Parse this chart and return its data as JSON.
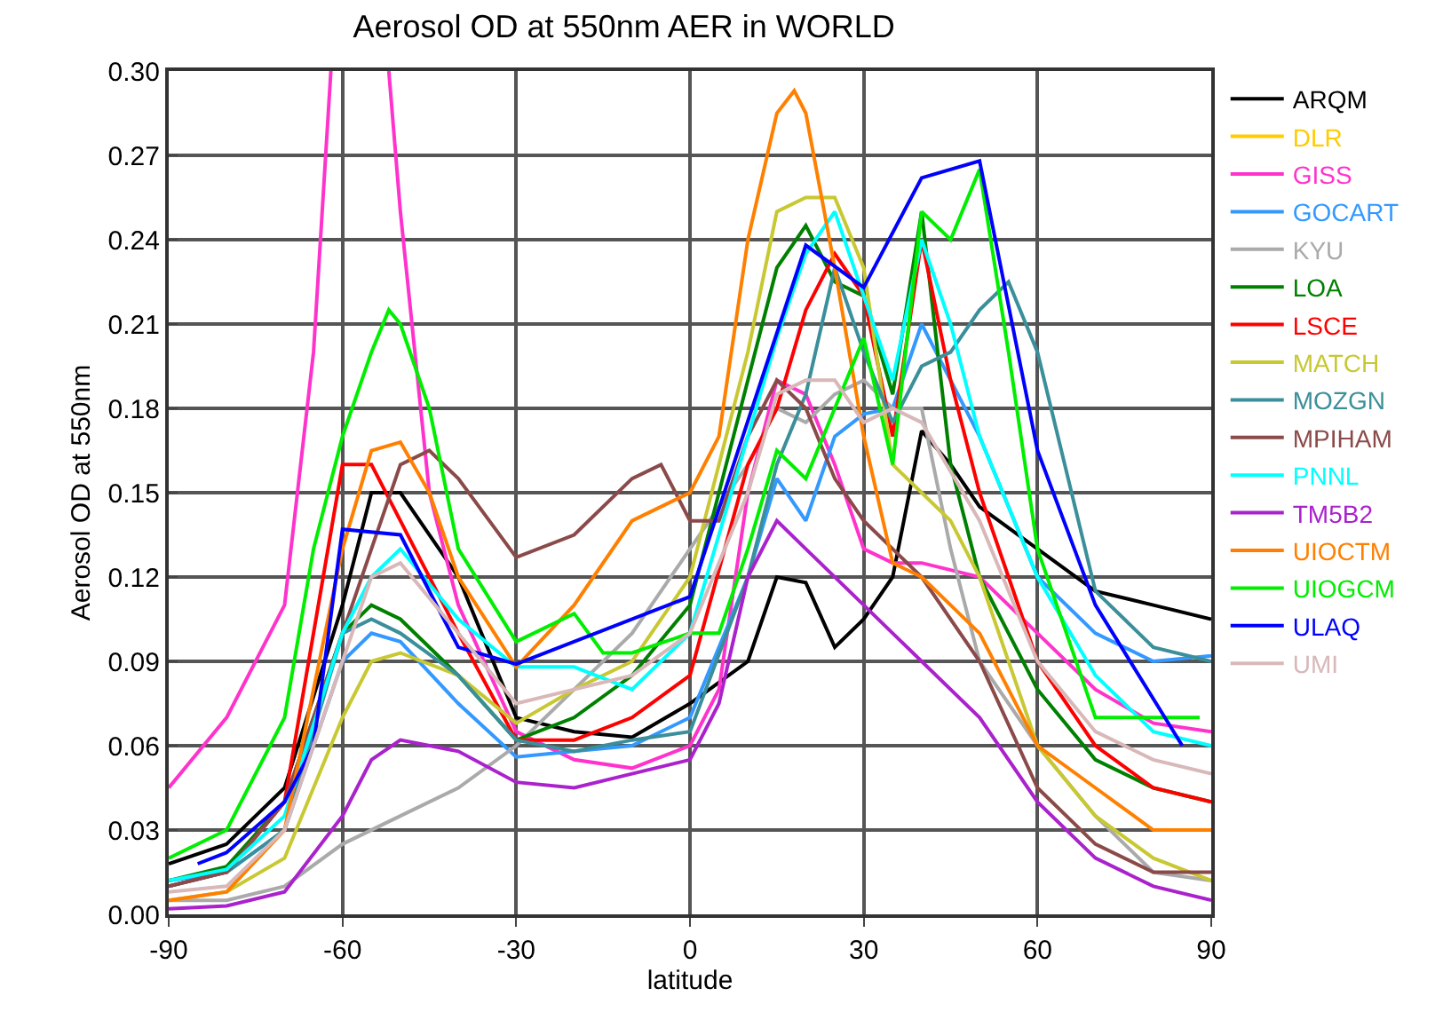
{
  "chart_data": {
    "type": "line",
    "title": "Aerosol OD at 550nm AER in WORLD",
    "xlabel": "latitude",
    "ylabel": "Aerosol OD at 550nm",
    "xlim": [
      -90,
      90
    ],
    "xticks": [
      -90,
      -60,
      -30,
      0,
      30,
      60,
      90
    ],
    "ylim": [
      0,
      0.3
    ],
    "yticks": [
      {
        "value": 0,
        "label": "0.00"
      },
      {
        "value": 0.03,
        "label": "0.03"
      },
      {
        "value": 0.06,
        "label": "0.06"
      },
      {
        "value": 0.09,
        "label": "0.09"
      },
      {
        "value": 0.12,
        "label": "0.12"
      },
      {
        "value": 0.15,
        "label": "0.15"
      },
      {
        "value": 0.18,
        "label": "0.18"
      },
      {
        "value": 0.21,
        "label": "0.21"
      },
      {
        "value": 0.24,
        "label": "0.24"
      },
      {
        "value": 0.27,
        "label": "0.27"
      },
      {
        "value": 0.3,
        "label": "0.30"
      }
    ],
    "grid": true,
    "legend": "right",
    "marker": "none",
    "line_style": "solid",
    "series": [
      {
        "name": "ARQM",
        "color": "#000000",
        "x": [
          -90,
          -80,
          -70,
          -60,
          -55,
          -50,
          -40,
          -30,
          -20,
          -10,
          0,
          10,
          15,
          20,
          25,
          30,
          35,
          40,
          45,
          50,
          60,
          70,
          80,
          90
        ],
        "values": [
          0.018,
          0.025,
          0.045,
          0.11,
          0.15,
          0.15,
          0.12,
          0.07,
          0.065,
          0.063,
          0.075,
          0.09,
          0.12,
          0.118,
          0.095,
          0.105,
          0.12,
          0.172,
          0.16,
          0.145,
          0.13,
          0.115,
          0.11,
          0.105
        ]
      },
      {
        "name": "DLR",
        "color": "#ffcc00"
      },
      {
        "name": "GISS",
        "color": "#ff33cc",
        "x": [
          -90,
          -80,
          -70,
          -65,
          -62,
          -57,
          -52,
          -50,
          -45,
          -40,
          -30,
          -20,
          -10,
          0,
          5,
          10,
          15,
          20,
          25,
          30,
          35,
          40,
          50,
          60,
          70,
          80,
          90
        ],
        "values": [
          0.045,
          0.07,
          0.11,
          0.2,
          0.3,
          null,
          0.3,
          0.25,
          0.15,
          0.11,
          0.065,
          0.055,
          0.052,
          0.06,
          0.08,
          0.15,
          0.19,
          0.185,
          0.16,
          0.13,
          0.125,
          0.125,
          0.12,
          0.1,
          0.08,
          0.068,
          0.065
        ]
      },
      {
        "name": "GOCART",
        "color": "#3399ff",
        "x": [
          -90,
          -80,
          -70,
          -60,
          -55,
          -50,
          -40,
          -30,
          -20,
          -10,
          0,
          10,
          15,
          20,
          25,
          30,
          35,
          40,
          45,
          50,
          60,
          70,
          80,
          90
        ],
        "values": [
          0.012,
          0.015,
          0.03,
          0.09,
          0.1,
          0.097,
          0.075,
          0.056,
          0.058,
          0.06,
          0.07,
          0.12,
          0.155,
          0.14,
          0.17,
          0.178,
          0.18,
          0.21,
          0.19,
          0.17,
          0.12,
          0.1,
          0.09,
          0.092
        ]
      },
      {
        "name": "KYU",
        "color": "#aaaaaa",
        "x": [
          -90,
          -80,
          -70,
          -60,
          -50,
          -40,
          -30,
          -20,
          -10,
          0,
          10,
          15,
          20,
          25,
          30,
          35,
          40,
          45,
          50,
          60,
          70,
          80,
          90
        ],
        "values": [
          0.005,
          0.005,
          0.01,
          0.025,
          0.035,
          0.045,
          0.06,
          0.08,
          0.1,
          0.13,
          0.16,
          0.18,
          0.175,
          0.185,
          0.19,
          0.18,
          0.18,
          0.13,
          0.09,
          0.06,
          0.035,
          0.015,
          0.012
        ]
      },
      {
        "name": "LOA",
        "color": "#008000",
        "x": [
          -90,
          -80,
          -70,
          -60,
          -55,
          -50,
          -40,
          -30,
          -20,
          -10,
          0,
          10,
          15,
          20,
          25,
          30,
          35,
          40,
          45,
          50,
          60,
          70,
          80,
          90
        ],
        "values": [
          0.012,
          0.017,
          0.04,
          0.1,
          0.11,
          0.105,
          0.085,
          0.062,
          0.07,
          0.085,
          0.11,
          0.19,
          0.23,
          0.245,
          0.225,
          0.22,
          0.185,
          0.25,
          0.16,
          0.12,
          0.08,
          0.055,
          0.045,
          0.04
        ]
      },
      {
        "name": "LSCE",
        "color": "#ff0000",
        "x": [
          -90,
          -80,
          -70,
          -60,
          -55,
          -50,
          -40,
          -30,
          -20,
          -10,
          0,
          10,
          15,
          20,
          25,
          30,
          35,
          40,
          45,
          50,
          60,
          70,
          80,
          90
        ],
        "values": [
          0.01,
          0.015,
          0.04,
          0.16,
          0.16,
          0.14,
          0.1,
          0.062,
          0.062,
          0.07,
          0.085,
          0.16,
          0.18,
          0.215,
          0.235,
          0.22,
          0.17,
          0.24,
          0.19,
          0.15,
          0.09,
          0.06,
          0.045,
          0.04
        ]
      },
      {
        "name": "MATCH",
        "color": "#c8c832",
        "x": [
          -90,
          -80,
          -70,
          -60,
          -55,
          -50,
          -40,
          -30,
          -20,
          -10,
          0,
          10,
          15,
          20,
          25,
          30,
          35,
          40,
          45,
          50,
          60,
          70,
          80,
          90
        ],
        "values": [
          0.005,
          0.008,
          0.02,
          0.07,
          0.09,
          0.093,
          0.085,
          0.068,
          0.08,
          0.09,
          0.12,
          0.2,
          0.25,
          0.255,
          0.255,
          0.23,
          0.16,
          0.15,
          0.14,
          0.12,
          0.06,
          0.035,
          0.02,
          0.012
        ]
      },
      {
        "name": "MOZGN",
        "color": "#3a8f9a",
        "x": [
          -90,
          -80,
          -70,
          -60,
          -55,
          -50,
          -40,
          -30,
          -20,
          -10,
          0,
          10,
          15,
          20,
          25,
          30,
          35,
          40,
          45,
          50,
          55,
          60,
          70,
          80,
          90
        ],
        "values": [
          0.01,
          0.015,
          0.03,
          0.1,
          0.105,
          0.1,
          0.085,
          0.062,
          0.058,
          0.062,
          0.065,
          0.12,
          0.16,
          0.185,
          0.23,
          0.2,
          0.175,
          0.195,
          0.2,
          0.215,
          0.225,
          0.2,
          0.115,
          0.095,
          0.09
        ]
      },
      {
        "name": "MPIHAM",
        "color": "#8b4a4a",
        "x": [
          -90,
          -80,
          -70,
          -60,
          -55,
          -50,
          -45,
          -40,
          -30,
          -20,
          -10,
          -5,
          0,
          5,
          10,
          15,
          20,
          25,
          30,
          35,
          40,
          50,
          60,
          70,
          80,
          90
        ],
        "values": [
          0.01,
          0.015,
          0.04,
          0.1,
          0.13,
          0.16,
          0.165,
          0.155,
          0.127,
          0.135,
          0.155,
          0.16,
          0.14,
          0.14,
          0.17,
          0.19,
          0.18,
          0.155,
          0.14,
          0.13,
          0.12,
          0.09,
          0.045,
          0.025,
          0.015,
          0.015
        ]
      },
      {
        "name": "PNNL",
        "color": "#00ffff",
        "x": [
          -90,
          -80,
          -70,
          -60,
          -55,
          -50,
          -40,
          -30,
          -20,
          -10,
          0,
          10,
          15,
          20,
          25,
          30,
          35,
          40,
          45,
          50,
          60,
          70,
          80,
          90
        ],
        "values": [
          0.012,
          0.016,
          0.035,
          0.1,
          0.12,
          0.13,
          0.105,
          0.088,
          0.088,
          0.08,
          0.1,
          0.17,
          0.205,
          0.235,
          0.25,
          0.22,
          0.19,
          0.24,
          0.21,
          0.17,
          0.12,
          0.085,
          0.065,
          0.06
        ]
      },
      {
        "name": "TM5B2",
        "color": "#aa22cc",
        "x": [
          -90,
          -80,
          -70,
          -60,
          -55,
          -50,
          -40,
          -30,
          -20,
          -10,
          0,
          5,
          10,
          15,
          20,
          30,
          40,
          50,
          60,
          70,
          80,
          90
        ],
        "values": [
          0.002,
          0.003,
          0.008,
          0.035,
          0.055,
          0.062,
          0.058,
          0.047,
          0.045,
          0.05,
          0.055,
          0.075,
          0.12,
          0.14,
          0.13,
          0.11,
          0.09,
          0.07,
          0.04,
          0.02,
          0.01,
          0.005
        ]
      },
      {
        "name": "UIOCTM",
        "color": "#ff8000",
        "x": [
          -90,
          -80,
          -70,
          -60,
          -55,
          -50,
          -45,
          -40,
          -30,
          -20,
          -10,
          0,
          5,
          10,
          15,
          18,
          20,
          25,
          30,
          35,
          40,
          45,
          50,
          60,
          70,
          80,
          90
        ],
        "values": [
          0.005,
          0.008,
          0.03,
          0.13,
          0.165,
          0.168,
          0.15,
          0.12,
          0.088,
          0.11,
          0.14,
          0.15,
          0.17,
          0.24,
          0.285,
          0.293,
          0.285,
          0.23,
          0.17,
          0.125,
          0.12,
          0.11,
          0.1,
          0.06,
          0.045,
          0.03,
          0.03
        ]
      },
      {
        "name": "UIOGCM",
        "color": "#00ee00",
        "x": [
          -90,
          -80,
          -70,
          -65,
          -60,
          -55,
          -52,
          -50,
          -45,
          -40,
          -30,
          -20,
          -15,
          -10,
          0,
          5,
          10,
          15,
          20,
          25,
          30,
          35,
          40,
          45,
          50,
          55,
          60,
          70,
          80,
          88
        ],
        "values": [
          0.02,
          0.03,
          0.07,
          0.13,
          0.17,
          0.2,
          0.215,
          0.21,
          0.18,
          0.13,
          0.097,
          0.107,
          0.093,
          0.093,
          0.1,
          0.1,
          0.13,
          0.165,
          0.155,
          0.18,
          0.205,
          0.16,
          0.25,
          0.24,
          0.265,
          0.2,
          0.13,
          0.07,
          0.07,
          0.07
        ]
      },
      {
        "name": "ULAQ",
        "color": "#0000ff",
        "x": [
          -85,
          -80,
          -70,
          -65,
          -60,
          -50,
          -40,
          -30,
          0,
          20,
          30,
          40,
          50,
          60,
          70,
          85
        ],
        "values": [
          0.018,
          0.022,
          0.04,
          0.06,
          0.137,
          0.135,
          0.095,
          0.089,
          0.113,
          0.238,
          0.223,
          0.262,
          0.268,
          0.165,
          0.11,
          0.06
        ]
      },
      {
        "name": "UMI",
        "color": "#d8b8b8",
        "x": [
          -90,
          -80,
          -70,
          -60,
          -55,
          -50,
          -40,
          -30,
          -20,
          -10,
          0,
          10,
          15,
          20,
          25,
          30,
          35,
          40,
          50,
          60,
          70,
          80,
          90
        ],
        "values": [
          0.008,
          0.01,
          0.03,
          0.09,
          0.12,
          0.125,
          0.1,
          0.075,
          0.08,
          0.085,
          0.1,
          0.15,
          0.185,
          0.19,
          0.19,
          0.175,
          0.18,
          0.175,
          0.14,
          0.09,
          0.065,
          0.055,
          0.05
        ]
      }
    ]
  }
}
